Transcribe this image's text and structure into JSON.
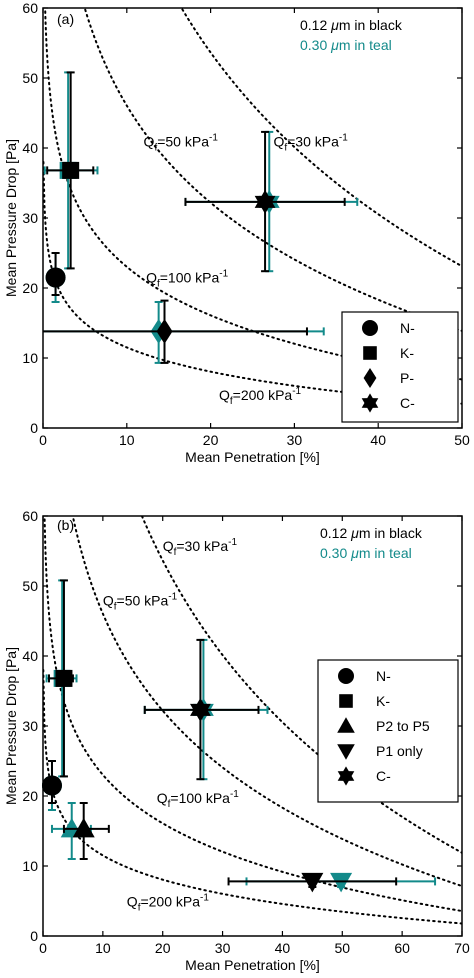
{
  "colors": {
    "black": "#000000",
    "teal": "#138a8a",
    "axis": "#000000",
    "curve": "#000000"
  },
  "chart_data": [
    {
      "type": "scatter",
      "panel_label": "(a)",
      "xlabel": "Mean Penetration [%]",
      "ylabel": "Mean Pressure Drop [Pa]",
      "xlim": [
        0,
        50
      ],
      "ylim": [
        0,
        60
      ],
      "xticks": [
        0,
        10,
        20,
        30,
        40,
        50
      ],
      "yticks": [
        0,
        10,
        20,
        30,
        40,
        50,
        60
      ],
      "xtick_labels": [
        "0",
        "10",
        "20",
        "30",
        "40",
        "50"
      ],
      "ytick_labels": [
        "0",
        "10",
        "20",
        "30",
        "40",
        "50",
        "60"
      ],
      "grid": false,
      "color_notes": [
        {
          "prefix": "0.12 ",
          "mu": "μ",
          "suffix": "m in black",
          "color": "black"
        },
        {
          "prefix": "0.30 ",
          "mu": "μ",
          "suffix": "m in teal",
          "color": "teal"
        }
      ],
      "legend": {
        "position": "bottom-right",
        "entries": [
          {
            "label": "N-",
            "marker": "circle"
          },
          {
            "label": "K-",
            "marker": "square"
          },
          {
            "label": "P-",
            "marker": "diamond"
          },
          {
            "label": "C-",
            "marker": "hexagram"
          }
        ]
      },
      "curves": [
        {
          "qf": 30,
          "label_pre": "Q",
          "label_sub": "f",
          "label_mid": "=30 kPa",
          "label_sup": "-1",
          "label_at": [
            27.5,
            40.2
          ]
        },
        {
          "qf": 50,
          "label_pre": "Q",
          "label_sub": "f",
          "label_mid": "=50 kPa",
          "label_sup": "-1",
          "label_at": [
            12.0,
            40.2
          ]
        },
        {
          "qf": 100,
          "label_pre": "Q",
          "label_sub": "f",
          "label_mid": "=100 kPa",
          "label_sup": "-1",
          "label_at": [
            12.3,
            20.8
          ]
        },
        {
          "qf": 200,
          "label_pre": "Q",
          "label_sub": "f",
          "label_mid": "=200 kPa",
          "label_sup": "-1",
          "label_at": [
            21.0,
            4.0
          ]
        }
      ],
      "points": [
        {
          "series": "N-",
          "marker": "circle",
          "color": "black",
          "x": 1.5,
          "y": 21.5,
          "xerr": [
            0.8,
            2.0
          ],
          "yerr": [
            19.0,
            25.0
          ]
        },
        {
          "series": "N-",
          "marker": "circle",
          "color": "teal",
          "x": 1.5,
          "y": 21.5,
          "xerr": [
            0.6,
            2.4
          ],
          "yerr": [
            18.0,
            25.0
          ]
        },
        {
          "series": "K-",
          "marker": "square",
          "color": "black",
          "x": 3.3,
          "y": 36.8,
          "xerr": [
            0.5,
            6.0
          ],
          "yerr": [
            22.8,
            50.8
          ]
        },
        {
          "series": "K-",
          "marker": "square",
          "color": "teal",
          "x": 3.0,
          "y": 36.8,
          "xerr": [
            0.2,
            6.5
          ],
          "yerr": [
            22.8,
            50.8
          ]
        },
        {
          "series": "P-",
          "marker": "diamond",
          "color": "black",
          "x": 14.5,
          "y": 13.8,
          "xerr": [
            0.0,
            31.5
          ],
          "yerr": [
            9.3,
            18.2
          ]
        },
        {
          "series": "P-",
          "marker": "diamond",
          "color": "teal",
          "x": 13.8,
          "y": 13.8,
          "xerr": [
            0.0,
            33.5
          ],
          "yerr": [
            9.3,
            18.0
          ]
        },
        {
          "series": "C-",
          "marker": "hexagram",
          "color": "black",
          "x": 26.5,
          "y": 32.3,
          "xerr": [
            17.0,
            36.0
          ],
          "yerr": [
            22.4,
            42.3
          ]
        },
        {
          "series": "C-",
          "marker": "hexagram",
          "color": "teal",
          "x": 27.0,
          "y": 32.3,
          "xerr": [
            17.0,
            37.5
          ],
          "yerr": [
            22.4,
            42.3
          ]
        }
      ]
    },
    {
      "type": "scatter",
      "panel_label": "(b)",
      "xlabel": "Mean Penetration [%]",
      "ylabel": "Mean Pressure Drop [Pa]",
      "xlim": [
        0,
        70
      ],
      "ylim": [
        0,
        60
      ],
      "xticks": [
        0,
        10,
        20,
        30,
        40,
        50,
        60,
        70
      ],
      "yticks": [
        0,
        10,
        20,
        30,
        40,
        50,
        60
      ],
      "xtick_labels": [
        "0",
        "10",
        "20",
        "30",
        "40",
        "50",
        "60",
        "70"
      ],
      "ytick_labels": [
        "0",
        "10",
        "20",
        "30",
        "40",
        "50",
        "60"
      ],
      "grid": false,
      "color_notes": [
        {
          "prefix": "0.12 ",
          "mu": "μ",
          "suffix": "m in black",
          "color": "black"
        },
        {
          "prefix": "0.30 ",
          "mu": "μ",
          "suffix": "m in teal",
          "color": "teal"
        }
      ],
      "legend": {
        "position": "right",
        "entries": [
          {
            "label": "N-",
            "marker": "circle"
          },
          {
            "label": "K-",
            "marker": "square"
          },
          {
            "label": "P2 to P5",
            "marker": "triangle-up"
          },
          {
            "label": "P1 only",
            "marker": "triangle-down"
          },
          {
            "label": "C-",
            "marker": "hexagram"
          }
        ]
      },
      "curves": [
        {
          "qf": 30,
          "label_pre": "Q",
          "label_sub": "f",
          "label_mid": "=30 kPa",
          "label_sup": "-1",
          "label_at": [
            20.0,
            55.0
          ]
        },
        {
          "qf": 50,
          "label_pre": "Q",
          "label_sub": "f",
          "label_mid": "=50 kPa",
          "label_sup": "-1",
          "label_at": [
            10.0,
            47.2
          ]
        },
        {
          "qf": 100,
          "label_pre": "Q",
          "label_sub": "f",
          "label_mid": "=100 kPa",
          "label_sup": "-1",
          "label_at": [
            19.0,
            19.0
          ]
        },
        {
          "qf": 200,
          "label_pre": "Q",
          "label_sub": "f",
          "label_mid": "=200 kPa",
          "label_sup": "-1",
          "label_at": [
            14.0,
            4.2
          ]
        }
      ],
      "points": [
        {
          "series": "N-",
          "marker": "circle",
          "color": "black",
          "x": 1.5,
          "y": 21.5,
          "xerr": [
            0.8,
            2.0
          ],
          "yerr": [
            19.0,
            25.0
          ]
        },
        {
          "series": "N-",
          "marker": "circle",
          "color": "teal",
          "x": 1.5,
          "y": 21.5,
          "xerr": [
            0.6,
            2.4
          ],
          "yerr": [
            18.0,
            25.0
          ]
        },
        {
          "series": "K-",
          "marker": "square",
          "color": "black",
          "x": 3.5,
          "y": 36.8,
          "xerr": [
            1.0,
            5.0
          ],
          "yerr": [
            22.8,
            50.8
          ]
        },
        {
          "series": "K-",
          "marker": "square",
          "color": "teal",
          "x": 3.2,
          "y": 36.8,
          "xerr": [
            0.6,
            5.6
          ],
          "yerr": [
            22.8,
            50.8
          ]
        },
        {
          "series": "P2 to P5",
          "marker": "triangle-up",
          "color": "black",
          "x": 6.8,
          "y": 15.3,
          "xerr": [
            3.5,
            11.0
          ],
          "yerr": [
            11.0,
            19.0
          ]
        },
        {
          "series": "P2 to P5",
          "marker": "triangle-up",
          "color": "teal",
          "x": 4.8,
          "y": 15.3,
          "xerr": [
            1.5,
            8.0
          ],
          "yerr": [
            11.0,
            19.0
          ]
        },
        {
          "series": "P1 only",
          "marker": "triangle-down",
          "color": "black",
          "x": 45.0,
          "y": 7.8,
          "xerr": [
            31.0,
            59.0
          ],
          "yerr": [
            7.0,
            8.6
          ]
        },
        {
          "series": "P1 only",
          "marker": "triangle-down",
          "color": "teal",
          "x": 49.8,
          "y": 7.8,
          "xerr": [
            34.0,
            65.5
          ],
          "yerr": [
            7.0,
            8.6
          ]
        },
        {
          "series": "C-",
          "marker": "hexagram",
          "color": "black",
          "x": 26.3,
          "y": 32.3,
          "xerr": [
            17.0,
            36.0
          ],
          "yerr": [
            22.4,
            42.3
          ]
        },
        {
          "series": "C-",
          "marker": "hexagram",
          "color": "teal",
          "x": 26.8,
          "y": 32.3,
          "xerr": [
            17.0,
            37.5
          ],
          "yerr": [
            22.4,
            42.3
          ]
        }
      ]
    }
  ]
}
